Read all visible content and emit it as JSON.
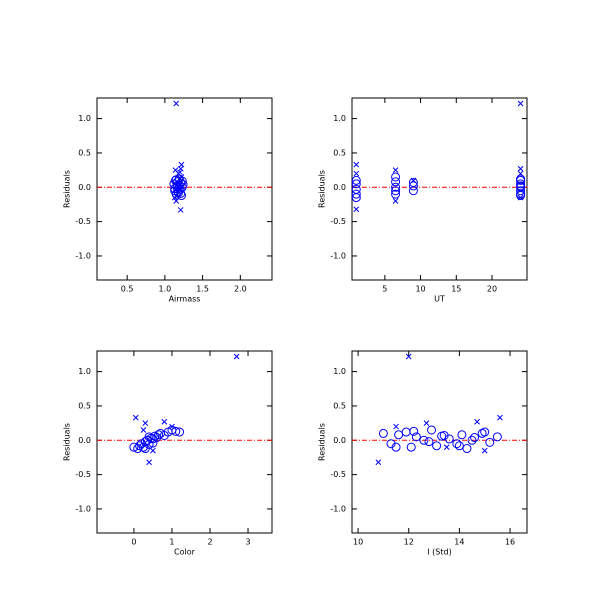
{
  "chart_data": [
    {
      "type": "scatter",
      "xlabel": "Airmass",
      "ylabel": "Residuals",
      "xlim": [
        0.1,
        2.42
      ],
      "ylim": [
        -1.35,
        1.3
      ],
      "xticks": [
        0.5,
        {
          "value": 1.0,
          "label": "1.0"
        },
        1.5,
        {
          "value": 2.0,
          "label": "2.0"
        }
      ],
      "yticks": [
        {
          "value": -1.0,
          "label": "-1.0"
        },
        -0.5,
        {
          "value": 0.0,
          "label": "0.0"
        },
        0.5,
        {
          "value": 1.0,
          "label": "1.0"
        }
      ],
      "ref_line": {
        "value": 0,
        "color": "#ff0000"
      },
      "series": [
        {
          "marker": "x",
          "color": "#0000ff",
          "x": [
            1.15,
            1.22,
            1.21,
            1.2,
            1.14,
            1.21,
            1.15,
            1.22,
            1.13,
            1.18
          ],
          "y": [
            1.22,
            0.33,
            0.27,
            0.22,
            0.25,
            -0.33,
            -0.2,
            0.15,
            -0.15,
            0.2
          ]
        },
        {
          "marker": "o",
          "color": "#0000ff",
          "x": [
            1.12,
            1.13,
            1.14,
            1.15,
            1.16,
            1.17,
            1.18,
            1.19,
            1.2,
            1.21,
            1.22,
            1.23,
            1.24,
            1.13,
            1.15,
            1.17,
            1.19,
            1.21,
            1.23,
            1.16
          ],
          "y": [
            0.05,
            -0.05,
            0.1,
            -0.1,
            0.02,
            0.08,
            -0.08,
            0.12,
            -0.03,
            0.06,
            -0.12,
            0.0,
            0.04,
            -0.02,
            0.11,
            -0.06,
            0.03,
            -0.09,
            0.09,
            0.0
          ]
        }
      ]
    },
    {
      "type": "scatter",
      "xlabel": "UT",
      "ylabel": "Residuals",
      "xlim": [
        0.4,
        24.9
      ],
      "ylim": [
        -1.35,
        1.3
      ],
      "xticks": [
        5,
        10,
        15,
        20
      ],
      "yticks": [
        {
          "value": -1.0,
          "label": "-1.0"
        },
        -0.5,
        {
          "value": 0.0,
          "label": "0.0"
        },
        0.5,
        {
          "value": 1.0,
          "label": "1.0"
        }
      ],
      "ref_line": {
        "value": 0,
        "color": "#ff0000"
      },
      "series": [
        {
          "marker": "x",
          "color": "#0000ff",
          "x": [
            24,
            1,
            1,
            6.5,
            6.5,
            24,
            24,
            9,
            1,
            24
          ],
          "y": [
            1.22,
            0.33,
            -0.32,
            0.25,
            -0.2,
            0.27,
            -0.15,
            0.1,
            0.2,
            0.2
          ]
        },
        {
          "marker": "o",
          "color": "#0000ff",
          "x": [
            1,
            1,
            1,
            1,
            1,
            6.5,
            6.5,
            6.5,
            6.5,
            6.5,
            9,
            9,
            9,
            24,
            24,
            24,
            24,
            24,
            24,
            24,
            24
          ],
          "y": [
            -0.1,
            -0.03,
            0.05,
            0.1,
            -0.15,
            -0.1,
            0,
            0.08,
            0.15,
            -0.05,
            -0.05,
            0.02,
            0.07,
            -0.12,
            -0.05,
            0,
            0.05,
            0.1,
            -0.1,
            0.02,
            0.12
          ]
        }
      ]
    },
    {
      "type": "scatter",
      "xlabel": "Color",
      "ylabel": "Residuals",
      "xlim": [
        -0.97,
        3.63
      ],
      "ylim": [
        -1.35,
        1.3
      ],
      "xticks": [
        0,
        1,
        2,
        3
      ],
      "yticks": [
        {
          "value": -1.0,
          "label": "-1.0"
        },
        -0.5,
        {
          "value": 0.0,
          "label": "0.0"
        },
        0.5,
        {
          "value": 1.0,
          "label": "1.0"
        }
      ],
      "ref_line": {
        "value": 0,
        "color": "#ff0000"
      },
      "series": [
        {
          "marker": "x",
          "color": "#0000ff",
          "x": [
            2.7,
            0.05,
            0.4,
            0.3,
            0.8,
            0.5,
            1.0,
            0.25
          ],
          "y": [
            1.22,
            0.33,
            -0.32,
            0.25,
            0.27,
            -0.15,
            0.2,
            0.15
          ]
        },
        {
          "marker": "o",
          "color": "#0000ff",
          "x": [
            0.0,
            0.1,
            0.15,
            0.2,
            0.25,
            0.3,
            0.35,
            0.4,
            0.45,
            0.5,
            0.55,
            0.6,
            0.65,
            0.7,
            0.8,
            0.9,
            1.0,
            1.1,
            1.2,
            0.3,
            0.4,
            0.5
          ],
          "y": [
            -0.1,
            -0.12,
            -0.08,
            -0.05,
            -0.1,
            -0.02,
            0.0,
            -0.06,
            0.03,
            0.02,
            0.06,
            0.04,
            0.08,
            0.1,
            0.07,
            0.12,
            0.15,
            0.13,
            0.12,
            -0.12,
            0.05,
            -0.04
          ]
        }
      ]
    },
    {
      "type": "scatter",
      "xlabel": "I (Std)",
      "ylabel": "Residuals",
      "xlim": [
        9.76,
        16.67
      ],
      "ylim": [
        -1.35,
        1.3
      ],
      "xticks": [
        10,
        12,
        14,
        16
      ],
      "yticks": [
        {
          "value": -1.0,
          "label": "-1.0"
        },
        -0.5,
        {
          "value": 0.0,
          "label": "0.0"
        },
        0.5,
        {
          "value": 1.0,
          "label": "1.0"
        }
      ],
      "ref_line": {
        "value": 0,
        "color": "#ff0000"
      },
      "series": [
        {
          "marker": "x",
          "color": "#0000ff",
          "x": [
            12,
            10.8,
            15.6,
            14.7,
            12.7,
            15,
            11.5,
            13.5
          ],
          "y": [
            1.22,
            -0.32,
            0.33,
            0.27,
            0.25,
            -0.15,
            0.2,
            -0.1
          ]
        },
        {
          "marker": "o",
          "color": "#0000ff",
          "x": [
            11,
            11.3,
            11.6,
            11.9,
            12.1,
            12.3,
            12.6,
            12.9,
            13.1,
            13.3,
            13.6,
            13.9,
            14.1,
            14.3,
            14.6,
            14.9,
            15.2,
            15.5,
            11.5,
            12.2,
            12.8,
            13.4,
            14.0,
            14.5,
            15.0
          ],
          "y": [
            0.1,
            -0.05,
            0.08,
            0.12,
            -0.1,
            0.05,
            0.0,
            0.15,
            -0.08,
            0.06,
            0.02,
            -0.05,
            0.08,
            -0.12,
            0.04,
            0.1,
            -0.03,
            0.05,
            -0.1,
            0.13,
            -0.02,
            0.07,
            -0.08,
            0.0,
            0.12
          ]
        }
      ]
    }
  ]
}
